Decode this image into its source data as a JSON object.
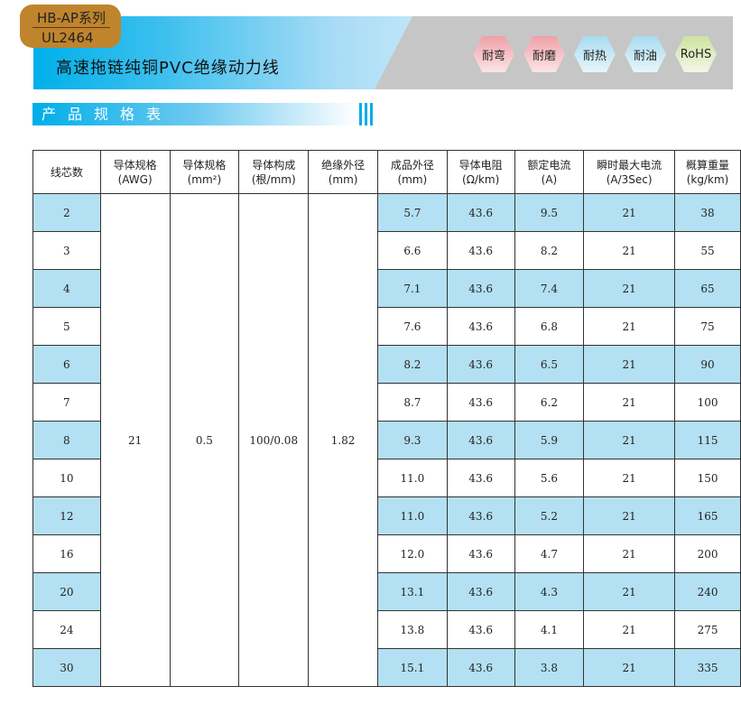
{
  "badge": {
    "series": "HB-AP系列",
    "model": "UL2464"
  },
  "title": "高速拖链纯铜PVC绝缘动力线",
  "features": [
    {
      "label": "耐弯",
      "color": "#f0a0a8"
    },
    {
      "label": "耐磨",
      "color": "#f0a0a8"
    },
    {
      "label": "耐热",
      "color": "#a8dcf0"
    },
    {
      "label": "耐油",
      "color": "#a8dcf0"
    },
    {
      "label": "RoHS",
      "color": "#cfe2a0"
    }
  ],
  "section_title": "产品规格表",
  "table": {
    "headers": [
      [
        "线芯数",
        ""
      ],
      [
        "导体规格",
        "(AWG)"
      ],
      [
        "导体规格",
        "(mm²)"
      ],
      [
        "导体构成",
        "(根/mm)"
      ],
      [
        "绝缘外径",
        "(mm)"
      ],
      [
        "成品外径",
        "(mm)"
      ],
      [
        "导体电阻",
        "(Ω/km)"
      ],
      [
        "额定电流",
        "(A)"
      ],
      [
        "瞬时最大电流",
        "(A/3Sec)"
      ],
      [
        "概算重量",
        "(kg/km)"
      ]
    ],
    "common": {
      "awg": "21",
      "mm2": "0.5",
      "construction": "100/0.08",
      "insulation": "1.82"
    },
    "rows": [
      [
        "2",
        "5.7",
        "43.6",
        "9.5",
        "21",
        "38"
      ],
      [
        "3",
        "6.6",
        "43.6",
        "8.2",
        "21",
        "55"
      ],
      [
        "4",
        "7.1",
        "43.6",
        "7.4",
        "21",
        "65"
      ],
      [
        "5",
        "7.6",
        "43.6",
        "6.8",
        "21",
        "75"
      ],
      [
        "6",
        "8.2",
        "43.6",
        "6.5",
        "21",
        "90"
      ],
      [
        "7",
        "8.7",
        "43.6",
        "6.2",
        "21",
        "100"
      ],
      [
        "8",
        "9.3",
        "43.6",
        "5.9",
        "21",
        "115"
      ],
      [
        "10",
        "11.0",
        "43.6",
        "5.6",
        "21",
        "150"
      ],
      [
        "12",
        "11.0",
        "43.6",
        "5.2",
        "21",
        "165"
      ],
      [
        "16",
        "12.0",
        "43.6",
        "4.7",
        "21",
        "200"
      ],
      [
        "20",
        "13.1",
        "43.6",
        "4.3",
        "21",
        "240"
      ],
      [
        "24",
        "13.8",
        "43.6",
        "4.1",
        "21",
        "275"
      ],
      [
        "30",
        "15.1",
        "43.6",
        "3.8",
        "21",
        "335"
      ]
    ]
  }
}
